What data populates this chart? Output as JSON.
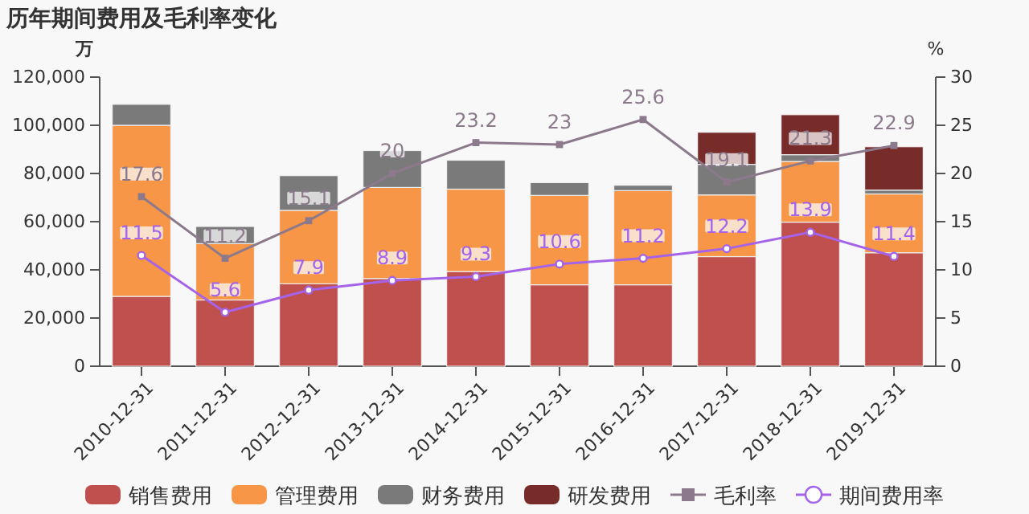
{
  "chart_data": {
    "type": "bar",
    "title": "历年期间费用及毛利率变化",
    "ylabel": "万",
    "y2label": "%",
    "categories": [
      "2010-12-31",
      "2011-12-31",
      "2012-12-31",
      "2013-12-31",
      "2014-12-31",
      "2015-12-31",
      "2016-12-31",
      "2017-12-31",
      "2018-12-31",
      "2019-12-31"
    ],
    "stacked": true,
    "ylim": [
      0,
      120000
    ],
    "yticks": [
      {
        "value": 0,
        "label": "0"
      },
      {
        "value": 20000,
        "label": "20,000"
      },
      {
        "value": 40000,
        "label": "40,000"
      },
      {
        "value": 60000,
        "label": "60,000"
      },
      {
        "value": 80000,
        "label": "80,000"
      },
      {
        "value": 100000,
        "label": "100,000"
      },
      {
        "value": 120000,
        "label": "120,000"
      }
    ],
    "y2lim": [
      0,
      30
    ],
    "y2ticks": [
      0,
      5,
      10,
      15,
      20,
      25,
      30
    ],
    "grid": false,
    "legend": "bottom",
    "series": [
      {
        "name": "销售费用",
        "color": "#c0504d",
        "values": [
          29000,
          27500,
          34200,
          36400,
          39300,
          33800,
          33800,
          45500,
          59800,
          47100
        ]
      },
      {
        "name": "管理费用",
        "color": "#f79646",
        "values": [
          71000,
          23400,
          30500,
          37800,
          34200,
          37100,
          39100,
          25600,
          25200,
          24400
        ]
      },
      {
        "name": "财务费用",
        "color": "#7a7a7a",
        "values": [
          8700,
          7100,
          14400,
          15300,
          12000,
          5300,
          2200,
          12700,
          2800,
          1600
        ]
      },
      {
        "name": "研发费用",
        "color": "#772c2a",
        "values": [
          null,
          null,
          null,
          null,
          null,
          null,
          null,
          13300,
          16600,
          18000
        ]
      },
      {
        "name": "毛利率",
        "type": "line",
        "axis": "y2",
        "marker": "square",
        "color": "#8c7a8c",
        "values": [
          17.6,
          11.2,
          15.1,
          20,
          23.2,
          23,
          25.6,
          19.1,
          21.3,
          22.9
        ],
        "value_labels": [
          "17.6",
          "11.2",
          "15.1",
          "20",
          "23.2",
          "23",
          "25.6",
          "19.1",
          "21.3",
          "22.9"
        ]
      },
      {
        "name": "期间费用率",
        "type": "line",
        "axis": "y2",
        "marker": "circle",
        "color": "#a463e8",
        "values": [
          11.5,
          5.6,
          7.9,
          8.9,
          9.3,
          10.6,
          11.2,
          12.2,
          13.9,
          11.4
        ],
        "value_labels": [
          "11.5",
          "5.6",
          "7.9",
          "8.9",
          "9.3",
          "10.6",
          "11.2",
          "12.2",
          "13.9",
          "11.4"
        ]
      }
    ]
  }
}
